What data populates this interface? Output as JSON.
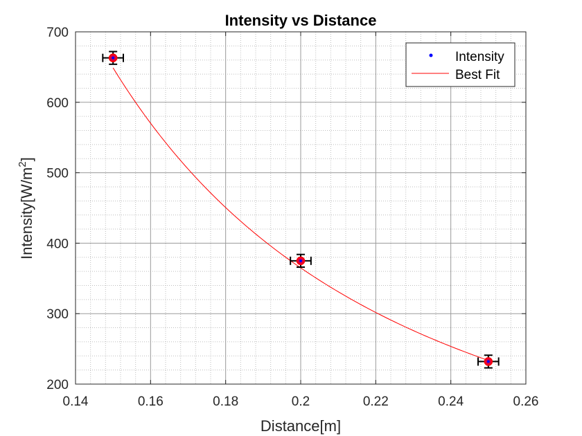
{
  "chart_data": {
    "type": "scatter",
    "title": "Intensity vs Distance",
    "xlabel": "Distance[m]",
    "ylabel": {
      "main": "Intensity[W/m",
      "sup": "2",
      "close": "]"
    },
    "xlim": [
      0.14,
      0.26
    ],
    "ylim": [
      200,
      700
    ],
    "xticks": [
      0.14,
      0.16,
      0.18,
      0.2,
      0.22,
      0.24,
      0.26
    ],
    "xtick_labels": [
      "0.14",
      "0.16",
      "0.18",
      "0.2",
      "0.22",
      "0.24",
      "0.26"
    ],
    "yticks": [
      200,
      300,
      400,
      500,
      600,
      700
    ],
    "ytick_labels": [
      "200",
      "300",
      "400",
      "500",
      "600",
      "700"
    ],
    "grid": true,
    "minor_grid": true,
    "legend_position": "top-right",
    "series": [
      {
        "name": "Intensity",
        "kind": "points",
        "color": "#0000ff",
        "marker_edge": "#ff0000",
        "x": [
          0.15,
          0.2,
          0.25
        ],
        "y": [
          663,
          375,
          232
        ],
        "x_err": [
          0.002,
          0.002,
          0.002
        ],
        "y_err": [
          9,
          9,
          9
        ]
      },
      {
        "name": "Best Fit",
        "kind": "line",
        "color": "#ff0000",
        "model": "inverse_square",
        "coefficient": 14.6
      }
    ]
  }
}
